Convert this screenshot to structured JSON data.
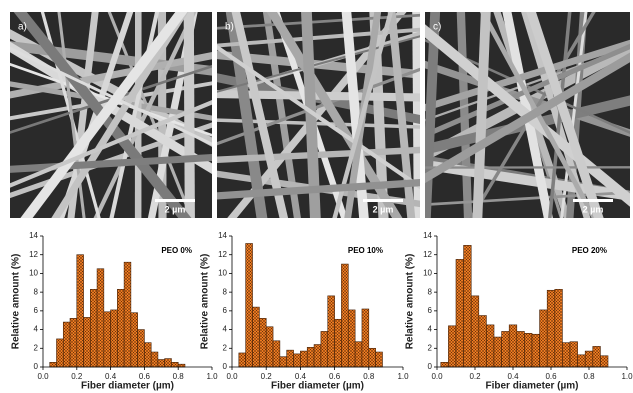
{
  "panels": [
    {
      "label": "a)",
      "scale_bar": "2 µm"
    },
    {
      "label": "b)",
      "scale_bar": "2 µm"
    },
    {
      "label": "c)",
      "scale_bar": "2 µm"
    }
  ],
  "chart_data": [
    {
      "type": "histogram",
      "annotation": "PEO 0%",
      "x_label": "Fiber diameter (µm)",
      "y_label": "Relative amount (%)",
      "color": "#ec7a22",
      "bins": [
        0.04,
        0.08,
        0.12,
        0.16,
        0.2,
        0.24,
        0.28,
        0.32,
        0.36,
        0.4,
        0.44,
        0.48,
        0.52,
        0.56,
        0.6,
        0.64,
        0.68,
        0.72,
        0.76,
        0.8,
        0.84
      ],
      "values": [
        0.5,
        3,
        4.8,
        5.2,
        12,
        5.3,
        8.3,
        10.5,
        5.9,
        6.1,
        8.3,
        11.2,
        5.8,
        4,
        2.6,
        1.6,
        0.8,
        0.9,
        0.5,
        0.3
      ],
      "xlim": [
        0,
        1
      ],
      "xticks": [
        {
          "value": 0,
          "label": "0.0"
        },
        0.2,
        0.4,
        0.6,
        0.8,
        {
          "value": 1,
          "label": "1.0"
        }
      ],
      "ylim": [
        0,
        14
      ],
      "yticks": [
        0,
        2,
        4,
        6,
        8,
        10,
        12,
        14
      ]
    },
    {
      "type": "histogram",
      "annotation": "PEO 10%",
      "x_label": "Fiber diameter (µm)",
      "y_label": "Relative amount (%)",
      "color": "#ec7a22",
      "bins": [
        0.04,
        0.08,
        0.12,
        0.16,
        0.2,
        0.24,
        0.28,
        0.32,
        0.36,
        0.4,
        0.44,
        0.48,
        0.52,
        0.56,
        0.6,
        0.64,
        0.68,
        0.72,
        0.76,
        0.8,
        0.84,
        0.88
      ],
      "values": [
        1.5,
        13.2,
        6.4,
        5.2,
        4.3,
        2.8,
        1.1,
        1.8,
        1.4,
        1.7,
        2.1,
        2.4,
        3.8,
        7.6,
        5.1,
        11,
        6.1,
        2.7,
        6.2,
        2,
        1.6
      ],
      "xlim": [
        0,
        1
      ],
      "xticks": [
        {
          "value": 0,
          "label": "0.0"
        },
        0.2,
        0.4,
        0.6,
        0.8,
        {
          "value": 1,
          "label": "1.0"
        }
      ],
      "ylim": [
        0,
        14
      ],
      "yticks": [
        0,
        2,
        4,
        6,
        8,
        10,
        12,
        14
      ]
    },
    {
      "type": "histogram",
      "annotation": "PEO 20%",
      "x_label": "Fiber diameter (µm)",
      "y_label": "Relative amount (%)",
      "color": "#ec7a22",
      "bins": [
        0.02,
        0.06,
        0.1,
        0.14,
        0.18,
        0.22,
        0.26,
        0.3,
        0.34,
        0.38,
        0.42,
        0.46,
        0.5,
        0.54,
        0.58,
        0.62,
        0.66,
        0.7,
        0.74,
        0.78,
        0.82,
        0.86,
        0.9
      ],
      "values": [
        0.5,
        4.4,
        11.5,
        13,
        7.6,
        5.5,
        4.5,
        3.2,
        3.8,
        4.5,
        3.8,
        3.6,
        3.5,
        6.1,
        8.2,
        8.3,
        2.6,
        2.7,
        1.3,
        1.7,
        2.2,
        1.2
      ],
      "xlim": [
        0,
        1
      ],
      "xticks": [
        {
          "value": 0,
          "label": "0.0"
        },
        0.2,
        0.4,
        0.6,
        0.8,
        {
          "value": 1,
          "label": "1.0"
        }
      ],
      "ylim": [
        0,
        14
      ],
      "yticks": [
        0,
        2,
        4,
        6,
        8,
        10,
        12,
        14
      ]
    }
  ]
}
